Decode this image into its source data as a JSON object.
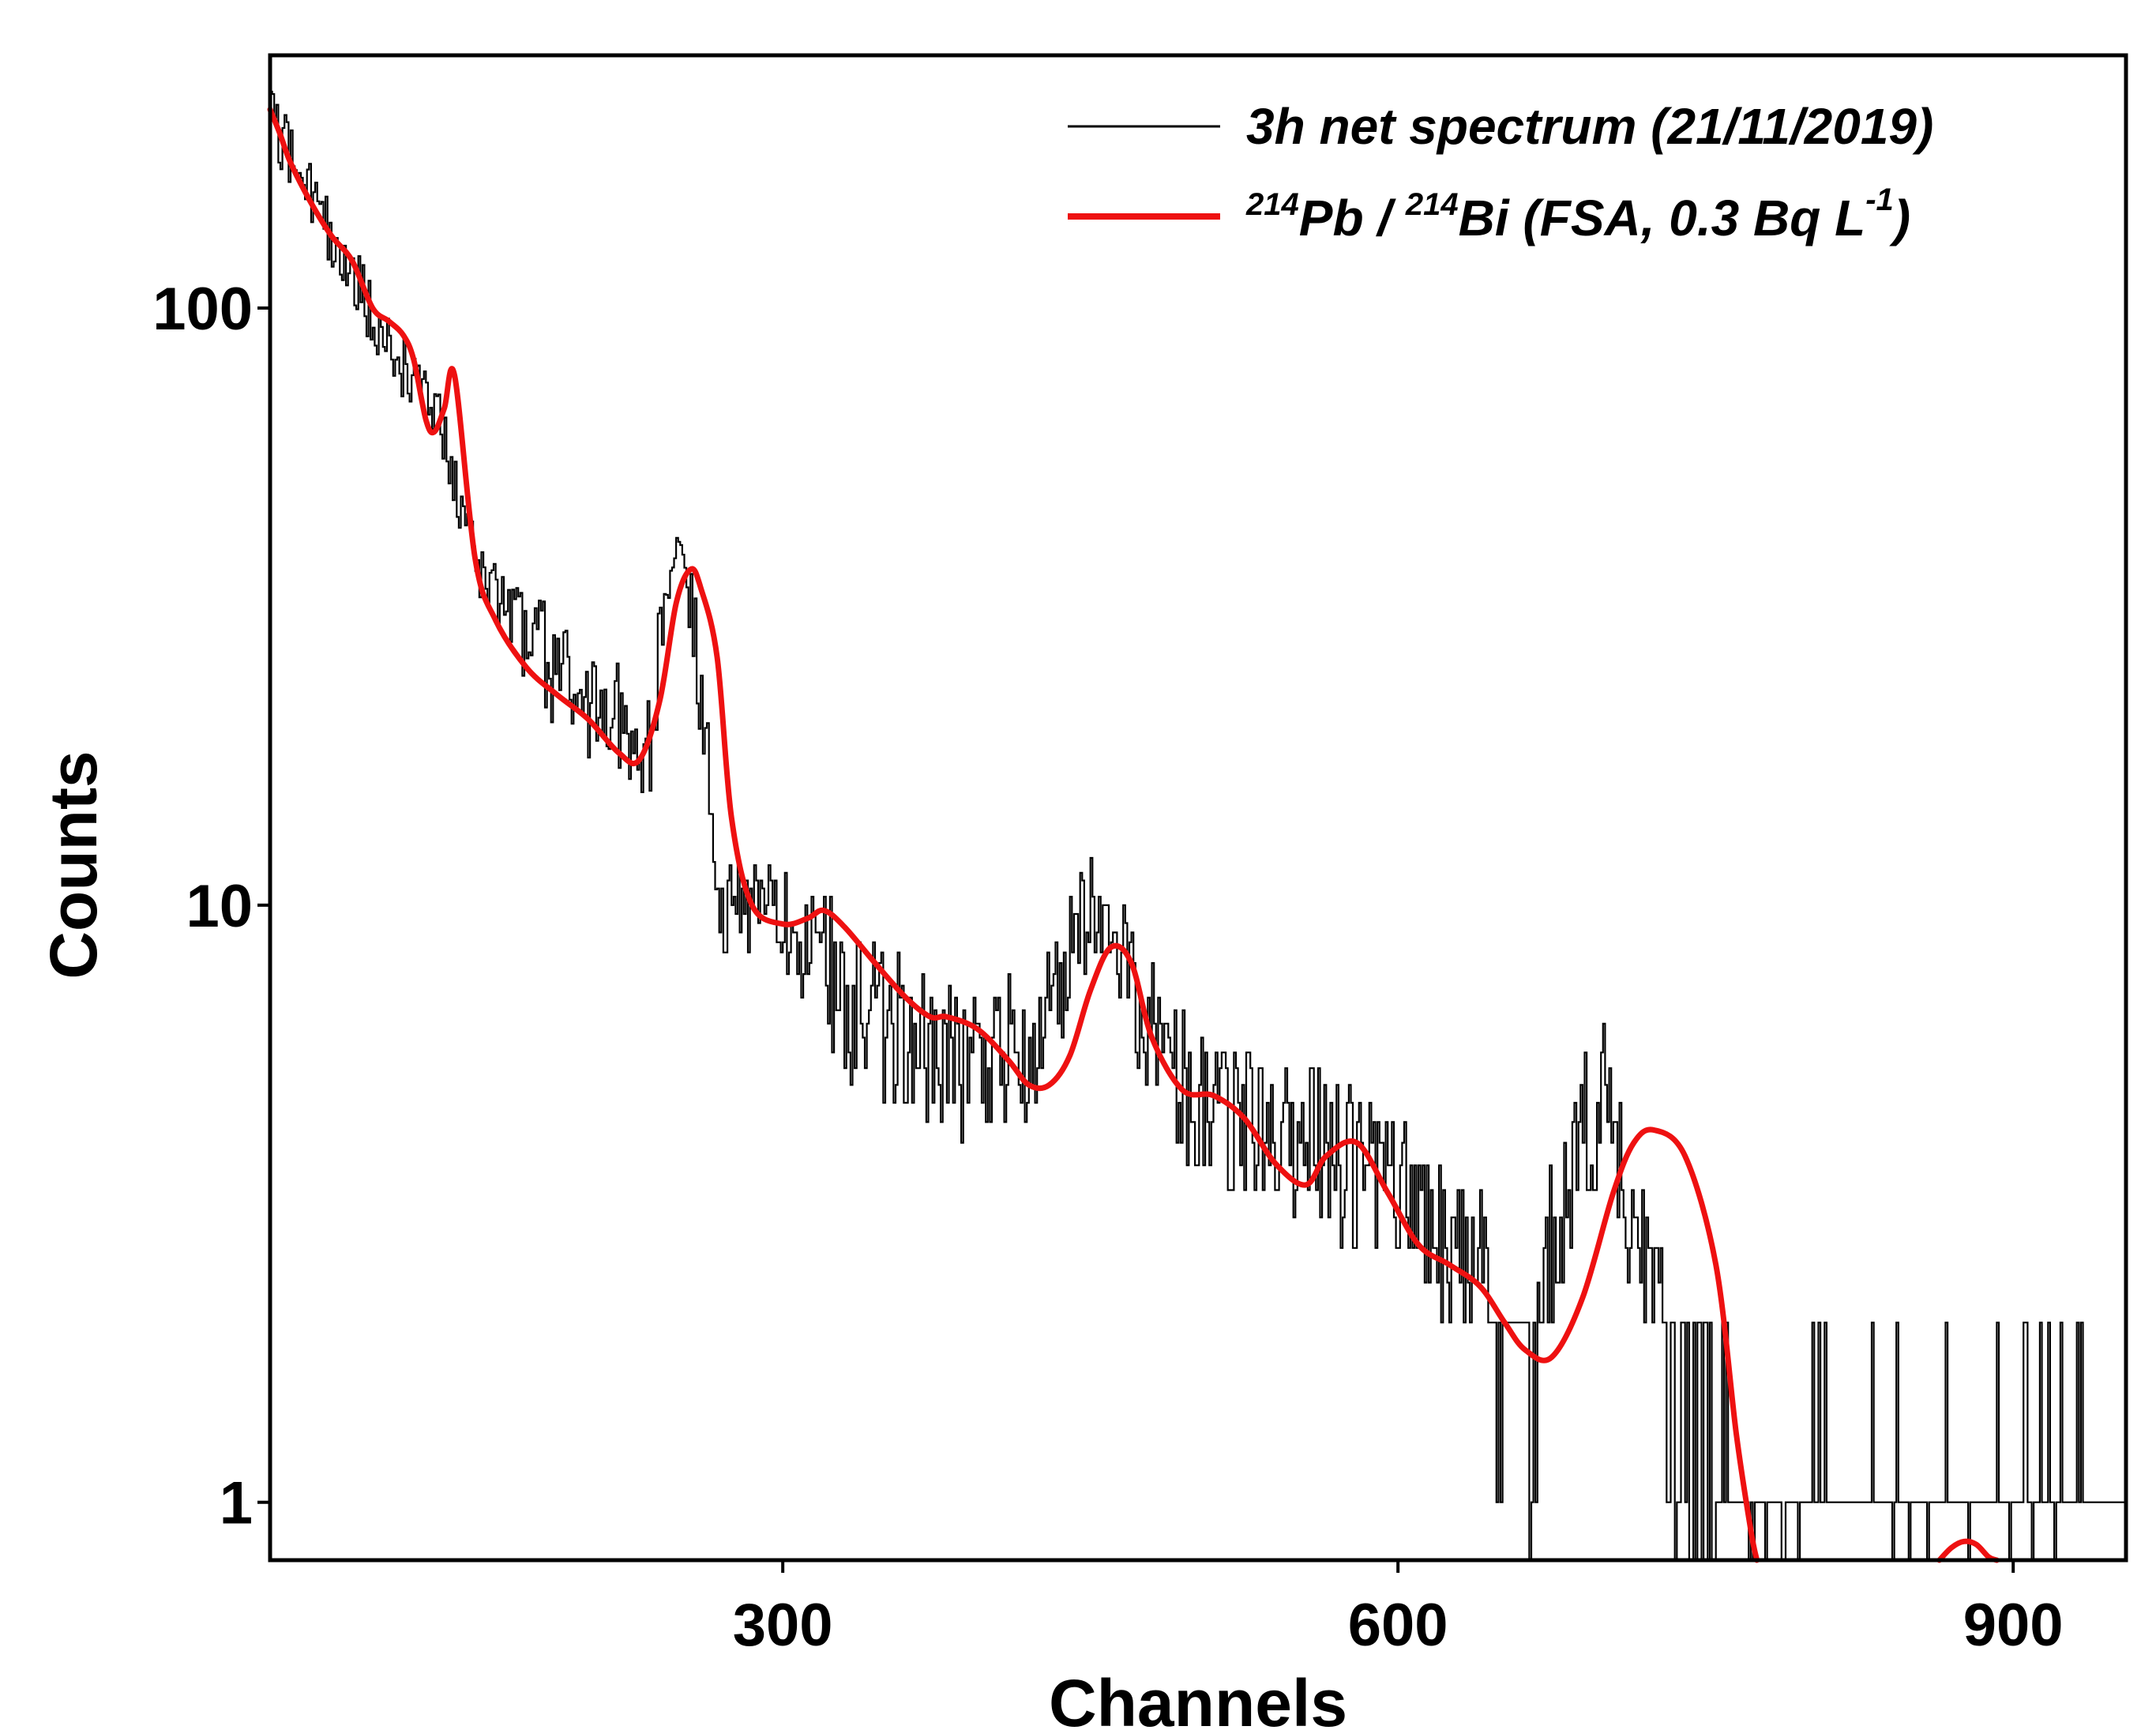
{
  "chart_data": {
    "type": "line",
    "title": "",
    "xlabel": "Channels",
    "ylabel": "Counts",
    "xscale": "linear",
    "yscale": "log",
    "xlim": [
      50,
      955
    ],
    "ylim": [
      0.8,
      265
    ],
    "xticks": [
      300,
      600,
      900
    ],
    "xtick_labels": [
      "300",
      "600",
      "900"
    ],
    "yticks": [
      1,
      10,
      100
    ],
    "ytick_labels": [
      "1",
      "10",
      "100"
    ],
    "grid": false,
    "legend_position": "top-right",
    "series": [
      {
        "name": "3h net spectrum (21/11/2019)",
        "color": "#000000",
        "style": "noisy step histogram",
        "trend_x": [
          50,
          60,
          75,
          90,
          100,
          115,
          130,
          150,
          175,
          200,
          225,
          235,
          245,
          255,
          270,
          285,
          300,
          320,
          340,
          380,
          420,
          450,
          465,
          490,
          520,
          560,
          580,
          610,
          640,
          660,
          700,
          715,
          740,
          760,
          800,
          850,
          900,
          950
        ],
        "trend_y": [
          210,
          180,
          140,
          115,
          95,
          80,
          70,
          38,
          28,
          22,
          20,
          18,
          40,
          32,
          10,
          10,
          9.5,
          8,
          6.5,
          5.5,
          6,
          10,
          8,
          5,
          4.5,
          4,
          3.5,
          3,
          2.5,
          2,
          5,
          3,
          2,
          1,
          1,
          1,
          1,
          1
        ]
      },
      {
        "name": "214Pb / 214Bi (FSA, 0.3 Bq L-1)",
        "color": "#ee1111",
        "style": "smooth fit",
        "x": [
          50,
          55,
          60,
          70,
          80,
          90,
          100,
          108,
          115,
          120,
          126,
          130,
          135,
          140,
          150,
          160,
          175,
          190,
          205,
          220,
          230,
          240,
          248,
          255,
          260,
          268,
          275,
          285,
          300,
          312,
          320,
          330,
          345,
          360,
          372,
          380,
          395,
          410,
          420,
          430,
          440,
          450,
          460,
          470,
          480,
          495,
          510,
          525,
          540,
          555,
          565,
          580,
          595,
          610,
          625,
          640,
          652,
          662,
          675,
          690,
          705,
          715,
          725,
          740,
          755,
          765,
          772,
          775
        ],
        "y": [
          215,
          195,
          175,
          150,
          132,
          120,
          100,
          95,
          90,
          82,
          65,
          62,
          68,
          77,
          38,
          30,
          25,
          22.5,
          20.5,
          18,
          17.5,
          22,
          32,
          36.5,
          34,
          26,
          14,
          10,
          9.3,
          9.5,
          9.8,
          9.2,
          8.0,
          7.0,
          6.5,
          6.5,
          6.2,
          5.5,
          5.0,
          5.0,
          5.6,
          7.2,
          8.5,
          8.0,
          6.0,
          4.9,
          4.8,
          4.4,
          3.7,
          3.4,
          3.8,
          4.0,
          3.3,
          2.7,
          2.5,
          2.3,
          2.0,
          1.8,
          1.75,
          2.2,
          3.3,
          4.0,
          4.2,
          3.8,
          2.5,
          1.3,
          0.9,
          0.8
        ],
        "extra_segment": {
          "x": [
            864,
            870,
            876,
            882,
            888,
            892
          ],
          "y": [
            0.8,
            0.84,
            0.86,
            0.85,
            0.81,
            0.8
          ]
        }
      }
    ],
    "legend": [
      {
        "label": "3h net spectrum (21/11/2019)",
        "color": "#000000"
      },
      {
        "label_parts": [
          "214",
          "Pb / ",
          "214",
          "Bi (FSA, 0.3 Bq L",
          "-1",
          ")"
        ],
        "color": "#ee1111"
      }
    ]
  }
}
